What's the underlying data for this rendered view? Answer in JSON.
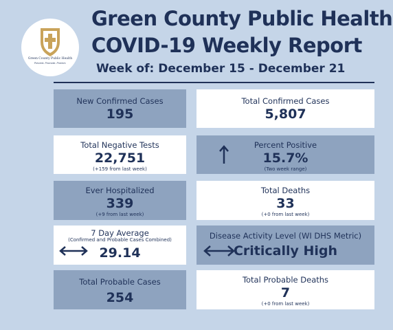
{
  "header": {
    "logo": {
      "name": "Green County Public Health",
      "tagline": "Prevent. Promote. Protect."
    },
    "title_line1": "Green County Public Health",
    "title_line2": "COVID-19 Weekly Report",
    "week": "Week of: December 15 - December 21"
  },
  "cards": [
    {
      "label": "New Confirmed Cases",
      "value": "195"
    },
    {
      "label": "Total Confirmed Cases",
      "value": "5,807"
    },
    {
      "label": "Total Negative Tests",
      "value": "22,751",
      "note": "(+159 from last week)"
    },
    {
      "label": "Percent Positive",
      "value": "15.7%",
      "note": "(Two week range)"
    },
    {
      "label": "Ever Hospitalized",
      "value": "339",
      "note": "(+9 from last week)"
    },
    {
      "label": "Total Deaths",
      "value": "33",
      "note": "(+0 from last week)"
    },
    {
      "label": "7 Day Average",
      "sub": "(Confirmed and Probable Cases Combined)",
      "value": "29.14"
    },
    {
      "label": "Disease Activity Level (WI DHS Metric)",
      "value": "Critically High"
    },
    {
      "label": "Total Probable Cases",
      "value": "254"
    },
    {
      "label": "Total Probable Deaths",
      "value": "7",
      "note": "(+0 from last week)"
    }
  ]
}
